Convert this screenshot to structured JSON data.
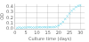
{
  "chart_data": {
    "type": "scatter",
    "xlabel": "Culture time (days)",
    "ylabel": "OD",
    "x": [
      1,
      2,
      3,
      4,
      5,
      6,
      7,
      8,
      9,
      10,
      11,
      12,
      13,
      14,
      15,
      16,
      17,
      18,
      19,
      20,
      21,
      22,
      23,
      24,
      25,
      26,
      27,
      28,
      29,
      30
    ],
    "values": [
      0.02,
      0.025,
      0.02,
      0.025,
      0.025,
      0.03,
      0.028,
      0.025,
      0.025,
      0.028,
      0.03,
      0.028,
      0.03,
      0.03,
      0.03,
      0.032,
      0.03,
      0.035,
      0.04,
      0.06,
      0.09,
      0.13,
      0.18,
      0.23,
      0.28,
      0.33,
      0.36,
      0.4,
      0.42,
      0.43
    ],
    "color": "#88ddee",
    "marker": "x",
    "xlim": [
      0,
      32
    ],
    "xticks": [
      0,
      5,
      10,
      15,
      20,
      25,
      30
    ],
    "ylim": [
      0,
      0.45
    ],
    "yticks": [
      {
        "value": 0,
        "label": "0.0"
      },
      0.1,
      0.2,
      0.3,
      0.4
    ],
    "grid": true
  }
}
